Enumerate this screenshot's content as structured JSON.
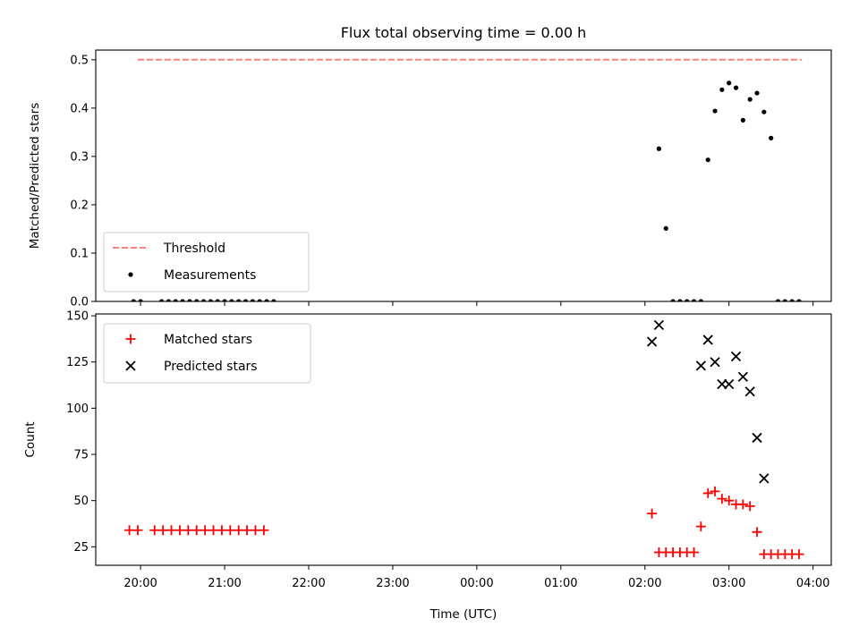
{
  "chart_data": {
    "title": "Flux total observing time = 0.00 h",
    "xlabel": "Time (UTC)",
    "x_tick_labels": [
      "20:00",
      "21:00",
      "22:00",
      "23:00",
      "00:00",
      "01:00",
      "02:00",
      "03:00",
      "04:00"
    ],
    "x_range": [
      "19:28",
      "04:13"
    ],
    "panels": [
      {
        "type": "scatter",
        "ylabel": "Matched/Predicted stars",
        "ylim": [
          0,
          0.52
        ],
        "y_ticks": [
          0.0,
          0.1,
          0.2,
          0.3,
          0.4,
          0.5
        ],
        "y_tick_labels": [
          "0.0",
          "0.1",
          "0.2",
          "0.3",
          "0.4",
          "0.5"
        ],
        "legend_position": "lower-left",
        "series": [
          {
            "name": "Threshold",
            "kind": "dashed-line",
            "color": "#ff7f7f",
            "x": [
              "19:58",
              "03:52"
            ],
            "y": [
              0.5,
              0.5
            ]
          },
          {
            "name": "Measurements",
            "kind": "dot",
            "color": "#000000",
            "x": [
              "19:55",
              "20:00",
              "20:15",
              "20:20",
              "20:25",
              "20:30",
              "20:35",
              "20:40",
              "20:45",
              "20:50",
              "20:55",
              "21:00",
              "21:05",
              "21:10",
              "21:15",
              "21:20",
              "21:25",
              "21:30",
              "21:35",
              "02:10",
              "02:15",
              "02:20",
              "02:25",
              "02:30",
              "02:35",
              "02:40",
              "02:45",
              "02:50",
              "02:55",
              "03:00",
              "03:05",
              "03:10",
              "03:15",
              "03:20",
              "03:25",
              "03:30",
              "03:35",
              "03:40",
              "03:45",
              "03:50"
            ],
            "y": [
              0,
              0,
              0,
              0,
              0,
              0,
              0,
              0,
              0,
              0,
              0,
              0,
              0,
              0,
              0,
              0,
              0,
              0,
              0,
              0.316,
              0.151,
              0,
              0,
              0,
              0,
              0,
              0.293,
              0.394,
              0.438,
              0.452,
              0.442,
              0.375,
              0.418,
              0.431,
              0.392,
              0.338,
              0,
              0,
              0,
              0
            ]
          }
        ]
      },
      {
        "type": "scatter",
        "ylabel": "Count",
        "ylim": [
          15,
          151
        ],
        "y_ticks": [
          25,
          50,
          75,
          100,
          125,
          150
        ],
        "y_tick_labels": [
          "25",
          "50",
          "75",
          "100",
          "125",
          "150"
        ],
        "legend_position": "upper-left",
        "series": [
          {
            "name": "Matched stars",
            "kind": "plus",
            "color": "#ff0000",
            "x": [
              "19:52",
              "19:58",
              "20:10",
              "20:16",
              "20:22",
              "20:28",
              "20:34",
              "20:40",
              "20:46",
              "20:52",
              "20:58",
              "21:04",
              "21:10",
              "21:16",
              "21:22",
              "21:28",
              "02:05",
              "02:10",
              "02:15",
              "02:20",
              "02:25",
              "02:30",
              "02:35",
              "02:40",
              "02:45",
              "02:50",
              "02:55",
              "03:00",
              "03:05",
              "03:10",
              "03:15",
              "03:20",
              "03:25",
              "03:30",
              "03:35",
              "03:40",
              "03:45",
              "03:50"
            ],
            "y": [
              34,
              34,
              34,
              34,
              34,
              34,
              34,
              34,
              34,
              34,
              34,
              34,
              34,
              34,
              34,
              34,
              43,
              22,
              22,
              22,
              22,
              22,
              22,
              36,
              54,
              55,
              51,
              50,
              48,
              48,
              47,
              33,
              21,
              21,
              21,
              21,
              21,
              21
            ]
          },
          {
            "name": "Predicted stars",
            "kind": "x",
            "color": "#000000",
            "x": [
              "02:05",
              "02:10",
              "02:40",
              "02:45",
              "02:50",
              "02:55",
              "03:00",
              "03:05",
              "03:10",
              "03:15",
              "03:20",
              "03:25"
            ],
            "y": [
              136,
              145,
              123,
              137,
              125,
              113,
              113,
              128,
              117,
              109,
              84,
              62
            ]
          }
        ]
      }
    ]
  }
}
